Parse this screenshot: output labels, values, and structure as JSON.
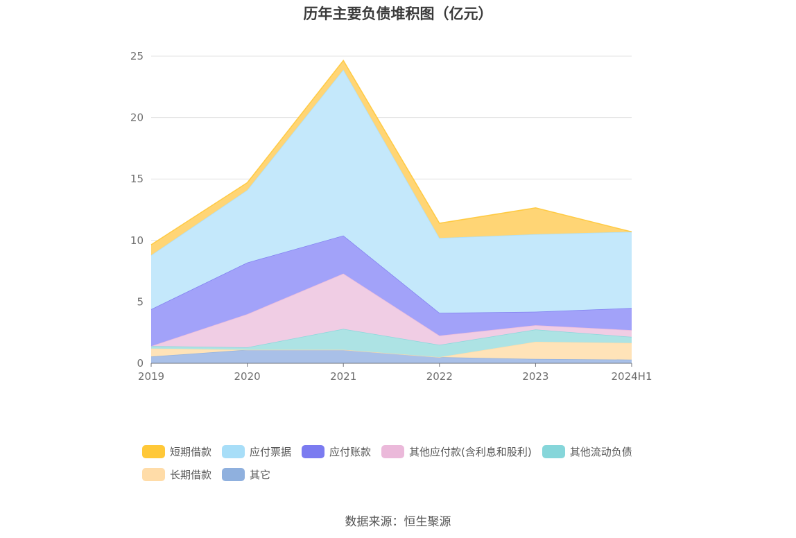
{
  "chart_data": {
    "type": "area",
    "stacked": true,
    "title": "历年主要负债堆积图（亿元）",
    "x": [
      "2019",
      "2020",
      "2021",
      "2022",
      "2023",
      "2024H1"
    ],
    "y_ticks": [
      0,
      5,
      10,
      15,
      20,
      25
    ],
    "ylim": [
      0,
      25
    ],
    "grid": true,
    "legend_position": "bottom",
    "series": [
      {
        "name": "其它",
        "color": "#8fb0de",
        "fill": "#a9c0e8",
        "values": [
          0.55,
          1.1,
          1.1,
          0.5,
          0.35,
          0.3
        ]
      },
      {
        "name": "长期借款",
        "color": "#ffdca8",
        "fill": "#ffe3b8",
        "values": [
          0.65,
          0.0,
          0.0,
          0.0,
          1.4,
          1.35
        ]
      },
      {
        "name": "其他流动负债",
        "color": "#86d6da",
        "fill": "#ade3e4",
        "values": [
          0.2,
          0.2,
          1.7,
          1.0,
          1.0,
          0.5
        ]
      },
      {
        "name": "其他应付款(含利息和股利)",
        "color": "#ebb9da",
        "fill": "#f0cde4",
        "values": [
          0.0,
          2.7,
          4.5,
          0.75,
          0.35,
          0.55
        ]
      },
      {
        "name": "应付账款",
        "color": "#7b7bf0",
        "fill": "#a2a2f9",
        "values": [
          3.0,
          4.2,
          3.1,
          1.85,
          1.1,
          1.8
        ]
      },
      {
        "name": "应付票据",
        "color": "#a8def8",
        "fill": "#c4e8fb",
        "values": [
          4.4,
          5.9,
          13.5,
          6.1,
          6.3,
          6.2
        ]
      },
      {
        "name": "短期借款",
        "color": "#ffc838",
        "fill": "#ffd575",
        "values": [
          0.85,
          0.6,
          0.75,
          1.2,
          2.15,
          0.0
        ]
      }
    ]
  },
  "legend_order": [
    [
      "短期借款",
      "应付票据",
      "应付账款",
      "其他应付款(含利息和股利)",
      "其他流动负债"
    ],
    [
      "长期借款",
      "其它"
    ]
  ],
  "source": "数据来源：恒生聚源"
}
